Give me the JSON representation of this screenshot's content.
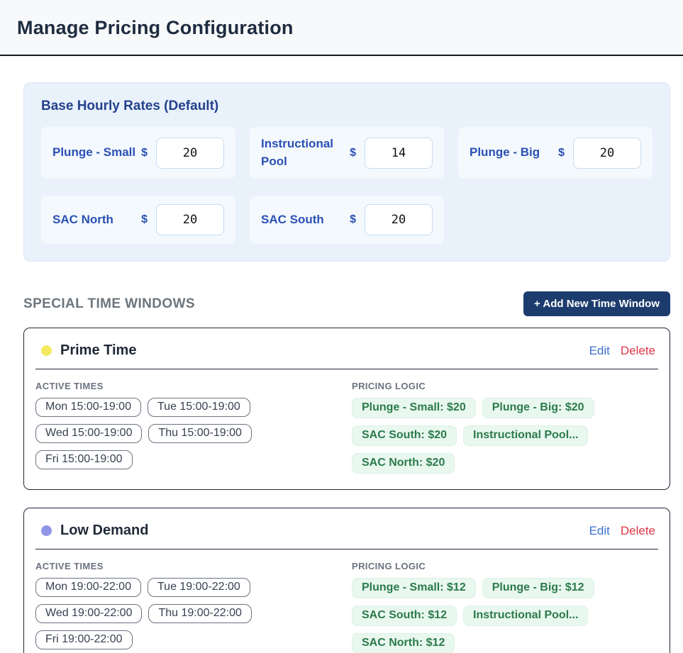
{
  "header": {
    "title": "Manage Pricing Configuration"
  },
  "base_rates": {
    "title": "Base Hourly Rates (Default)",
    "currency": "$",
    "items": [
      {
        "label": "Plunge - Small",
        "value": "20"
      },
      {
        "label": "Instructional Pool",
        "value": "14"
      },
      {
        "label": "Plunge - Big",
        "value": "20"
      },
      {
        "label": "SAC North",
        "value": "20"
      },
      {
        "label": "SAC South",
        "value": "20"
      }
    ]
  },
  "special_windows": {
    "section_title": "SPECIAL TIME WINDOWS",
    "add_button_label": "+ Add New Time Window",
    "active_times_label": "ACTIVE TIMES",
    "pricing_logic_label": "PRICING LOGIC",
    "edit_label": "Edit",
    "delete_label": "Delete",
    "windows": [
      {
        "name": "Prime Time",
        "dot_color": "#f5e960",
        "active_times": [
          "Mon 15:00-19:00",
          "Tue 15:00-19:00",
          "Wed 15:00-19:00",
          "Thu 15:00-19:00",
          "Fri 15:00-19:00"
        ],
        "pricing": [
          "Plunge - Small: $20",
          "Plunge - Big: $20",
          "SAC South: $20",
          "Instructional Pool...",
          "SAC North: $20"
        ]
      },
      {
        "name": "Low Demand",
        "dot_color": "#9195e8",
        "active_times": [
          "Mon 19:00-22:00",
          "Tue 19:00-22:00",
          "Wed 19:00-22:00",
          "Thu 19:00-22:00",
          "Fri 19:00-22:00"
        ],
        "pricing": [
          "Plunge - Small: $12",
          "Plunge - Big: $12",
          "SAC South: $12",
          "Instructional Pool...",
          "SAC North: $12"
        ]
      }
    ]
  },
  "colors": {
    "accent_navy": "#1d3c6e",
    "base_card_bg": "#e9f1fb",
    "rate_label_blue": "#2a50b4",
    "edit_link": "#3c6fd1",
    "delete_link": "#dc3545",
    "price_pill_bg": "#e9f8ef",
    "price_pill_text": "#2b7a4b",
    "prime_time_dot": "#f5e960",
    "low_demand_dot": "#9195e8"
  }
}
